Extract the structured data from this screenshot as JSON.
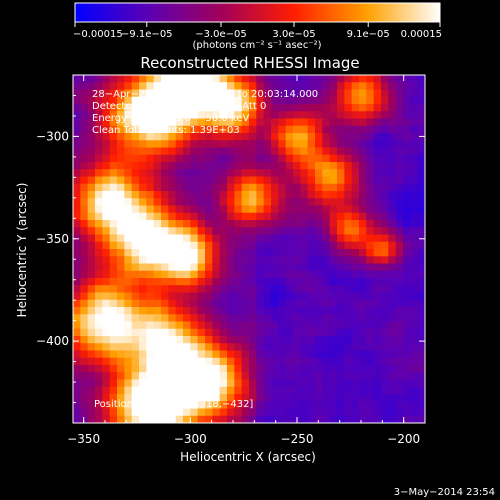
{
  "chart_data": {
    "type": "heatmap",
    "title": "Reconstructed RHESSI Image",
    "xlabel": "Heliocentric X (arcsec)",
    "ylabel": "Heliocentric Y (arcsec)",
    "xlim": [
      -355,
      -190
    ],
    "ylim": [
      -440,
      -270
    ],
    "x_ticks": [
      -350,
      -300,
      -250,
      -200
    ],
    "y_ticks": [
      -300,
      -350,
      -400
    ],
    "x_tick_labels": [
      "−350",
      "−300",
      "−250",
      "−200"
    ],
    "y_tick_labels": [
      "−300",
      "−350",
      "−400"
    ],
    "colorbar": {
      "min": -0.00015,
      "max": 0.00015,
      "tick_labels": [
        "−0.00015",
        "−9.1e−05",
        "−3.0e−05",
        "3.0e−05",
        "9.1e−05",
        "0.00015"
      ],
      "tick_values": [
        -0.00015,
        -9.1e-05,
        -3e-05,
        3e-05,
        9.1e-05,
        0.00015
      ],
      "units": "(photons cm⁻² s⁻¹ asec⁻²)",
      "colors": [
        "#0000ff",
        "#5a00b4",
        "#a0005a",
        "#ff1e00",
        "#ffa000",
        "#ffffff"
      ]
    },
    "annotations": {
      "time": "28−Apr−2012 19:57:14.000 to 20:03:14.000",
      "detectors": "Detectors: 3F 5F 6F 7F 8F 9F, Att 0",
      "energy": "Energy Range: 25.0 − 50.0 keV",
      "clean": "Clean     Total counts: 1.39E+03",
      "peak": "Position of Peak = [−318,−432]"
    },
    "peak": [
      -318,
      -432
    ]
  },
  "footer": {
    "date": "3−May−2014 23:54"
  }
}
